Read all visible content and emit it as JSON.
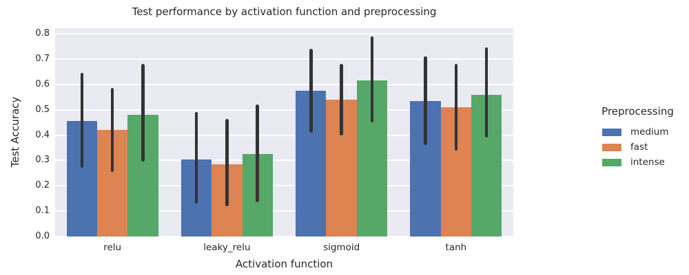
{
  "figure": {
    "title": "Test performance by activation function and preprocessing",
    "xlabel": "Activation function",
    "ylabel": "Test Accuracy"
  },
  "legend": {
    "title": "Preprocessing",
    "entries": [
      {
        "label": "medium",
        "color": "#4c72b0"
      },
      {
        "label": "fast",
        "color": "#dd8452"
      },
      {
        "label": "intense",
        "color": "#55a868"
      }
    ]
  },
  "chart_data": {
    "type": "bar",
    "title": "Test performance by activation function and preprocessing",
    "xlabel": "Activation function",
    "ylabel": "Test Accuracy",
    "categories": [
      "relu",
      "leaky_relu",
      "sigmoid",
      "tanh"
    ],
    "series": [
      {
        "name": "medium",
        "color": "#4c72b0",
        "values": [
          0.455,
          0.305,
          0.575,
          0.535
        ],
        "error_low": [
          0.27,
          0.13,
          0.41,
          0.36
        ],
        "error_high": [
          0.645,
          0.49,
          0.74,
          0.71
        ]
      },
      {
        "name": "fast",
        "color": "#dd8452",
        "values": [
          0.42,
          0.285,
          0.54,
          0.51
        ],
        "error_low": [
          0.255,
          0.12,
          0.4,
          0.34
        ],
        "error_high": [
          0.585,
          0.465,
          0.68,
          0.68
        ]
      },
      {
        "name": "intense",
        "color": "#55a868",
        "values": [
          0.48,
          0.325,
          0.615,
          0.56
        ],
        "error_low": [
          0.295,
          0.135,
          0.45,
          0.39
        ],
        "error_high": [
          0.68,
          0.52,
          0.79,
          0.745
        ]
      }
    ],
    "yticks": [
      0.0,
      0.1,
      0.2,
      0.3,
      0.4,
      0.5,
      0.6,
      0.7,
      0.8
    ],
    "ylim": [
      0,
      0.822
    ],
    "grid": "horizontal",
    "legend_position": "right-outside",
    "error_bars": true,
    "style": {
      "plot_bg": "#eaeaf2",
      "grid_color": "#ffffff",
      "errorbar_color": "#333333",
      "text_color": "#262626",
      "figure_bg": "#ffffff"
    }
  }
}
